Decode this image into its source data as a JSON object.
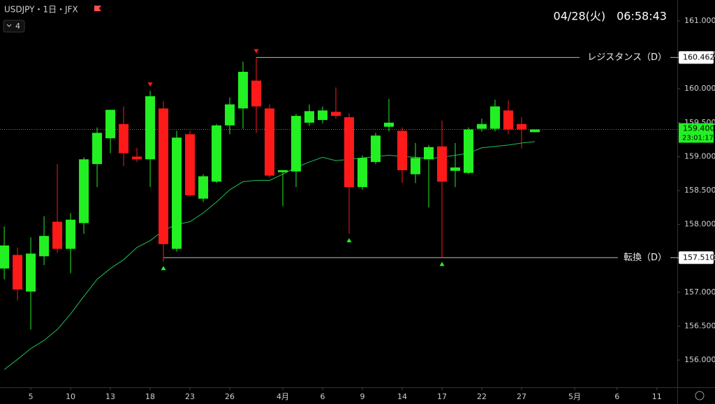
{
  "chart_data": {
    "type": "candlestick",
    "title": "USDJPY・1日・JFX",
    "indicator": "4",
    "datetime": "04/28(火)　06:58:43",
    "up_color": "#22f022",
    "down_color": "#ff1a1a",
    "open": [
      157.35,
      157.55,
      157.01,
      157.53,
      158.04,
      157.64,
      158.02,
      158.89,
      159.27,
      159.48,
      159.0,
      158.96,
      159.71,
      157.64,
      159.33,
      158.38,
      158.63,
      159.46,
      159.71,
      160.12,
      159.71,
      158.77,
      158.78,
      159.5,
      159.54,
      159.66,
      159.58,
      158.55,
      158.92,
      159.44,
      159.38,
      158.74,
      158.96,
      159.15,
      158.79,
      158.76,
      159.41,
      159.41,
      159.68,
      159.48,
      159.36
    ],
    "high": [
      157.97,
      157.66,
      157.81,
      158.12,
      158.89,
      158.17,
      158.99,
      159.43,
      159.69,
      159.74,
      159.13,
      159.97,
      159.82,
      159.38,
      159.38,
      158.74,
      159.48,
      159.87,
      160.4,
      160.462,
      159.77,
      158.8,
      159.63,
      159.77,
      159.74,
      160.02,
      159.64,
      159.02,
      159.35,
      159.85,
      159.43,
      159.2,
      159.17,
      159.53,
      159.2,
      159.43,
      159.56,
      159.84,
      159.83,
      159.58,
      159.4
    ],
    "low": [
      157.19,
      156.88,
      156.45,
      157.4,
      157.58,
      157.28,
      157.86,
      158.55,
      159.05,
      158.86,
      158.92,
      158.55,
      157.45,
      157.6,
      158.41,
      158.33,
      158.61,
      159.33,
      159.41,
      159.35,
      158.69,
      158.27,
      158.55,
      159.45,
      159.49,
      159.56,
      157.86,
      158.51,
      158.89,
      159.37,
      158.61,
      158.61,
      158.25,
      157.51,
      158.55,
      158.74,
      159.37,
      159.37,
      159.33,
      159.12,
      159.36
    ],
    "close": [
      157.69,
      157.04,
      157.57,
      157.83,
      157.64,
      158.07,
      158.96,
      159.35,
      159.69,
      159.05,
      158.96,
      159.89,
      157.71,
      159.28,
      158.43,
      158.71,
      159.46,
      159.77,
      160.25,
      159.74,
      158.72,
      158.8,
      159.6,
      159.67,
      159.68,
      159.6,
      158.55,
      158.98,
      159.31,
      159.5,
      158.8,
      158.98,
      159.14,
      158.63,
      158.84,
      159.4,
      159.48,
      159.74,
      159.4,
      159.4,
      159.4
    ],
    "moving_average": {
      "color": "#1fc05a",
      "values": [
        155.86,
        156.01,
        156.17,
        156.29,
        156.45,
        156.68,
        156.94,
        157.19,
        157.35,
        157.48,
        157.66,
        157.76,
        157.91,
        158.0,
        158.04,
        158.17,
        158.33,
        158.51,
        158.63,
        158.65,
        158.65,
        158.74,
        158.84,
        158.92,
        158.99,
        158.94,
        158.96,
        158.98,
        159.0,
        159.02,
        159.0,
        158.99,
        158.97,
        158.99,
        159.02,
        159.05,
        159.13,
        159.15,
        159.17,
        159.2,
        159.22
      ]
    },
    "levels": [
      {
        "name": "レジスタンス（D）",
        "value": 160.462
      },
      {
        "name": "転換（D）",
        "value": 157.51,
        "label": "157.510"
      }
    ],
    "current_price": {
      "value": 159.4,
      "label": "159.400",
      "countdown": "23:01:17"
    },
    "ylim": [
      155.599,
      161.309
    ],
    "yticks": [
      {
        "value": 156,
        "label": "156.000"
      },
      {
        "value": 156.5,
        "label": "156.500"
      },
      {
        "value": 157,
        "label": "157.000"
      },
      {
        "value": 157.5,
        "label": "157.500"
      },
      {
        "value": 158,
        "label": "158.000"
      },
      {
        "value": 158.5,
        "label": "158.500"
      },
      {
        "value": 159,
        "label": "159.000"
      },
      {
        "value": 159.5,
        "label": "159.500"
      },
      {
        "value": 160,
        "label": "160.000"
      },
      {
        "value": 160.5,
        "label": "160.500"
      },
      {
        "value": 161,
        "label": "161.000"
      }
    ],
    "xlim": [
      -0.32,
      50.74
    ],
    "xticks": [
      {
        "value": 2,
        "label": "5"
      },
      {
        "value": 5,
        "label": "10"
      },
      {
        "value": 8,
        "label": "13"
      },
      {
        "value": 11,
        "label": "18"
      },
      {
        "value": 14,
        "label": "23"
      },
      {
        "value": 17,
        "label": "26"
      },
      {
        "value": 21,
        "label": "4月"
      },
      {
        "value": 24,
        "label": "6"
      },
      {
        "value": 27,
        "label": "9"
      },
      {
        "value": 30,
        "label": "14"
      },
      {
        "value": 33,
        "label": "17"
      },
      {
        "value": 36,
        "label": "22"
      },
      {
        "value": 39,
        "label": "27"
      },
      {
        "value": 43,
        "label": "5月"
      },
      {
        "value": 46.2,
        "label": "6"
      },
      {
        "value": 49.2,
        "label": "11"
      }
    ]
  }
}
